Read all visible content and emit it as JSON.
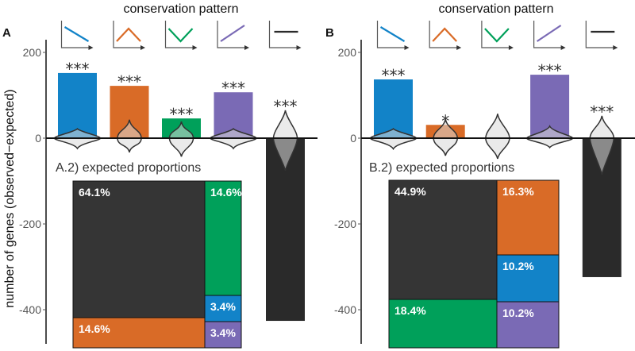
{
  "ylabel": "number of genes (observed−expected)",
  "colors": {
    "decreasing": "#1283c8",
    "peak": "#d96b27",
    "valley": "#00a05a",
    "increasing": "#7a6ab5",
    "flat": "#2a2a2a"
  },
  "chart_data": [
    {
      "type": "bar",
      "panel": "A",
      "title": "conservation pattern",
      "categories": [
        "decreasing",
        "peak",
        "valley",
        "increasing",
        "flat"
      ],
      "values": [
        152,
        122,
        46,
        107,
        -426
      ],
      "significance": [
        "***",
        "***",
        "***",
        "***",
        "***"
      ],
      "violins": [
        [
          -24,
          22
        ],
        [
          -33,
          43
        ],
        [
          -43,
          39
        ],
        [
          -24,
          22
        ],
        [
          -76,
          65
        ]
      ],
      "ylim": [
        -480,
        230
      ],
      "yticks": [
        "200",
        "0",
        "-200",
        "-400"
      ],
      "ytick_values": [
        200,
        0,
        -200,
        -400
      ],
      "inset": {
        "title": "A.2) expected proportions",
        "type": "treemap",
        "cells": [
          {
            "category": "flat",
            "label": "64.1%"
          },
          {
            "category": "peak",
            "label": "14.6%"
          },
          {
            "category": "valley",
            "label": "14.6%"
          },
          {
            "category": "decreasing",
            "label": "3.4%"
          },
          {
            "category": "increasing",
            "label": "3.4%"
          }
        ]
      }
    },
    {
      "type": "bar",
      "panel": "B",
      "title": "conservation pattern",
      "categories": [
        "decreasing",
        "peak",
        "valley",
        "increasing",
        "flat"
      ],
      "values": [
        137,
        31,
        0,
        148,
        -324
      ],
      "significance": [
        "***",
        "*",
        "",
        "***",
        "***"
      ],
      "violins": [
        [
          -25,
          22
        ],
        [
          -41,
          45
        ],
        [
          -48,
          57
        ],
        [
          -22,
          28
        ],
        [
          -85,
          52
        ]
      ],
      "ylim": [
        -480,
        230
      ],
      "yticks": [
        "200",
        "0",
        "-200",
        "-400"
      ],
      "ytick_values": [
        200,
        0,
        -200,
        -400
      ],
      "inset": {
        "title": "B.2) expected proportions",
        "type": "treemap",
        "cells": [
          {
            "category": "flat",
            "label": "44.9%"
          },
          {
            "category": "valley",
            "label": "18.4%"
          },
          {
            "category": "peak",
            "label": "16.3%"
          },
          {
            "category": "decreasing",
            "label": "10.2%"
          },
          {
            "category": "increasing",
            "label": "10.2%"
          }
        ]
      }
    }
  ]
}
